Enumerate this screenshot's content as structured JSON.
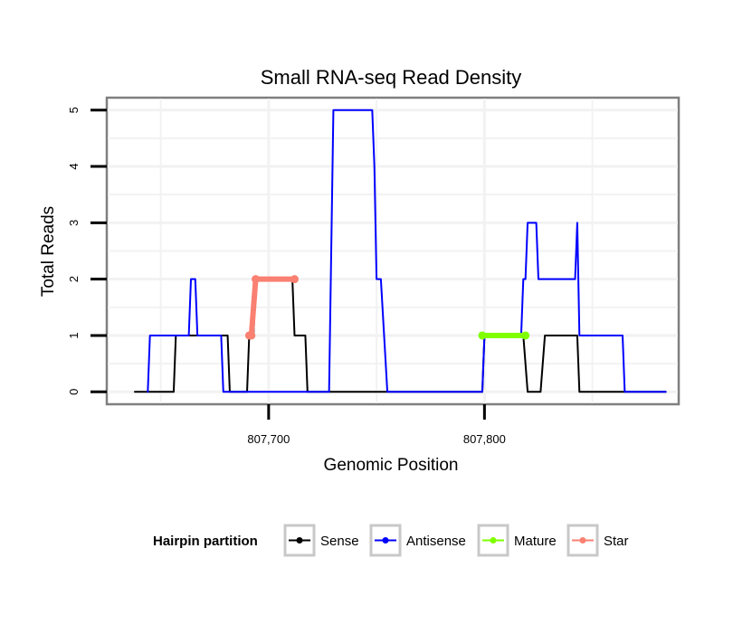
{
  "chart_data": {
    "type": "line",
    "title": "Small RNA-seq Read Density",
    "xlabel": "Genomic Position",
    "ylabel": "Total Reads",
    "xlim": [
      807625,
      807890
    ],
    "ylim": [
      -0.22,
      5.22
    ],
    "x_ticks": [
      {
        "value": 807700,
        "label": "807,700"
      },
      {
        "value": 807800,
        "label": "807,800"
      }
    ],
    "y_ticks": [
      {
        "value": 0,
        "label": "0"
      },
      {
        "value": 1,
        "label": "1"
      },
      {
        "value": 2,
        "label": "2"
      },
      {
        "value": 3,
        "label": "3"
      },
      {
        "value": 4,
        "label": "4"
      },
      {
        "value": 5,
        "label": "5"
      }
    ],
    "grid": true,
    "legend_title": "Hairpin partition",
    "legend_position": "bottom",
    "series": [
      {
        "name": "Sense",
        "color": "#000000",
        "points": [
          [
            807638,
            0
          ],
          [
            807656,
            0
          ],
          [
            807657,
            1
          ],
          [
            807681,
            1
          ],
          [
            807682,
            0
          ],
          [
            807690,
            0
          ],
          [
            807691,
            1
          ],
          [
            807693,
            1
          ],
          [
            807694,
            2
          ],
          [
            807711,
            2
          ],
          [
            807712,
            1
          ],
          [
            807717,
            1
          ],
          [
            807718,
            0
          ],
          [
            807799,
            0
          ],
          [
            807800,
            1
          ],
          [
            807818,
            1
          ],
          [
            807820,
            0
          ],
          [
            807826,
            0
          ],
          [
            807828,
            1
          ],
          [
            807843,
            1
          ],
          [
            807844,
            0
          ],
          [
            807884,
            0
          ]
        ]
      },
      {
        "name": "Antisense",
        "color": "#0000ff",
        "points": [
          [
            807644,
            0
          ],
          [
            807645,
            1
          ],
          [
            807663,
            1
          ],
          [
            807664,
            2
          ],
          [
            807666,
            2
          ],
          [
            807667,
            1
          ],
          [
            807678,
            1
          ],
          [
            807679,
            0
          ],
          [
            807728,
            0
          ],
          [
            807730,
            5
          ],
          [
            807748,
            5
          ],
          [
            807749,
            4
          ],
          [
            807750,
            2
          ],
          [
            807752,
            2
          ],
          [
            807755,
            0
          ],
          [
            807799,
            0
          ],
          [
            807800,
            1
          ],
          [
            807817,
            1
          ],
          [
            807818,
            2
          ],
          [
            807819,
            2
          ],
          [
            807820,
            3
          ],
          [
            807824,
            3
          ],
          [
            807825,
            2
          ],
          [
            807842,
            2
          ],
          [
            807843,
            3
          ],
          [
            807844,
            1
          ],
          [
            807864,
            1
          ],
          [
            807865,
            0
          ],
          [
            807884,
            0
          ]
        ]
      },
      {
        "name": "Mature",
        "color": "#7fff00",
        "points": [
          [
            807799,
            1
          ],
          [
            807819,
            1
          ]
        ]
      },
      {
        "name": "Star",
        "color": "#fa8072",
        "points": [
          [
            807691,
            1
          ],
          [
            807692,
            1
          ],
          [
            807694,
            2
          ],
          [
            807712,
            2
          ]
        ]
      }
    ]
  }
}
